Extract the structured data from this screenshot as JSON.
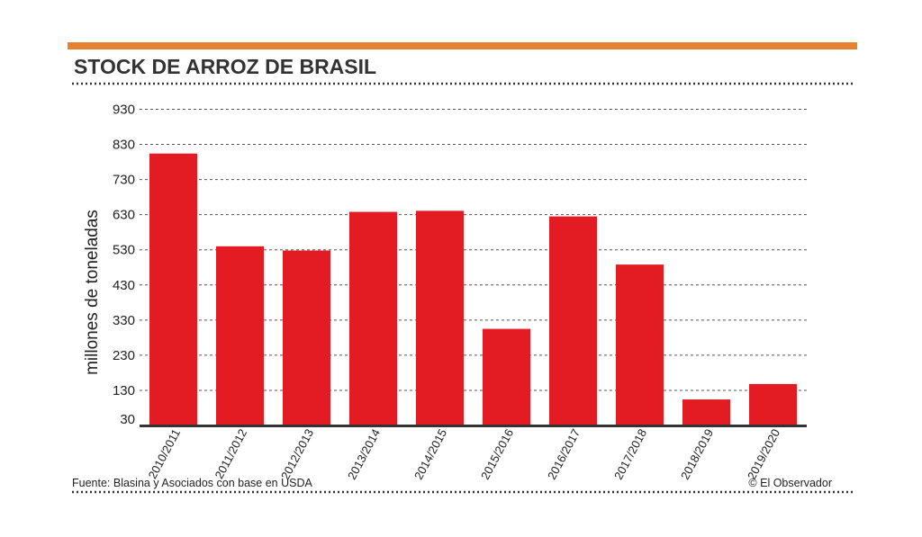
{
  "chart_data": {
    "type": "bar",
    "title": "STOCK DE ARROZ DE BRASIL",
    "ylabel": "millones de toneladas",
    "xlabel": "",
    "categories": [
      "2010/2011",
      "2011/2012",
      "2012/2013",
      "2013/2014",
      "2014/2015",
      "2015/2016",
      "2016/2017",
      "2017/2018",
      "2018/2019",
      "2019/2020"
    ],
    "values": [
      804,
      540,
      528,
      638,
      641,
      305,
      625,
      488,
      104,
      148
    ],
    "yticks": [
      30,
      130,
      230,
      330,
      430,
      530,
      630,
      730,
      830,
      930
    ],
    "ylim": [
      30,
      930
    ],
    "grid": true,
    "colors": {
      "bar": "#e31b23",
      "accent": "#e8812f"
    }
  },
  "footer": {
    "source": "Fuente: Blasina y Asociados con base en USDA",
    "credit": "© El Observador"
  }
}
